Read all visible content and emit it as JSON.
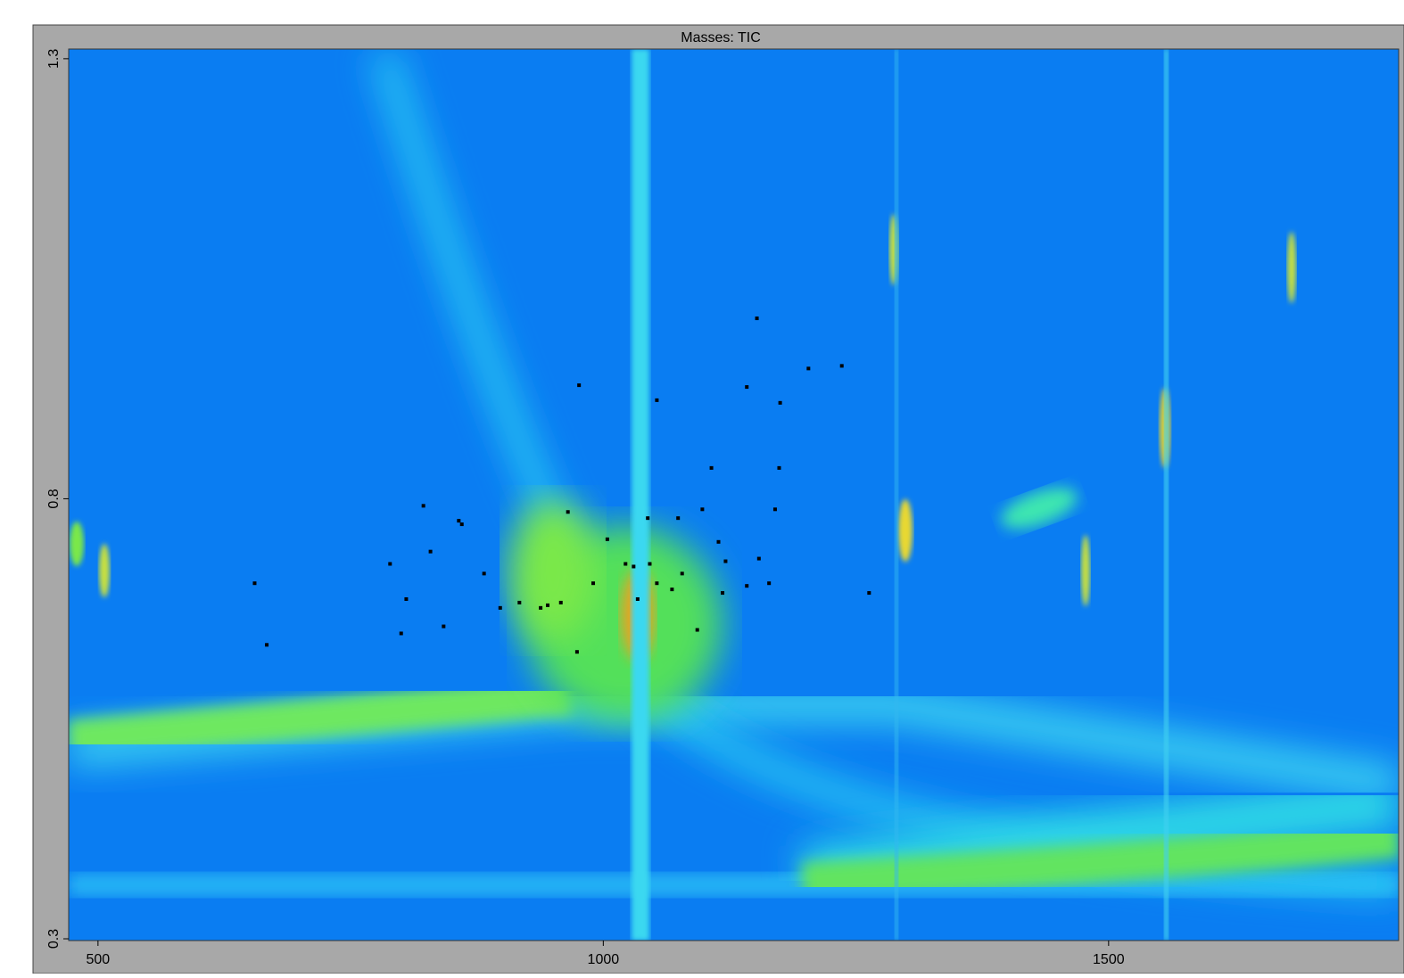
{
  "chart_data": {
    "type": "scatter",
    "title": "Masses: TIC",
    "x": [
      1152,
      1203,
      1236,
      976,
      1142,
      1053,
      1175,
      1107,
      1174,
      822,
      965,
      1044,
      1074,
      1098,
      1170,
      857,
      860,
      1004,
      1114,
      829,
      789,
      1022,
      1030,
      1046,
      1121,
      1154,
      882,
      1078,
      655,
      990,
      1053,
      1142,
      1164,
      1068,
      1118,
      1263,
      805,
      1034,
      917,
      945,
      958,
      898,
      938,
      842,
      800,
      1093,
      667,
      974
    ],
    "values": [
      1.005,
      0.948,
      0.951,
      0.929,
      0.927,
      0.912,
      0.909,
      0.835,
      0.835,
      0.792,
      0.785,
      0.778,
      0.778,
      0.788,
      0.788,
      0.775,
      0.771,
      0.754,
      0.751,
      0.74,
      0.726,
      0.726,
      0.723,
      0.726,
      0.729,
      0.732,
      0.715,
      0.715,
      0.704,
      0.704,
      0.704,
      0.701,
      0.704,
      0.697,
      0.693,
      0.693,
      0.686,
      0.686,
      0.682,
      0.679,
      0.682,
      0.676,
      0.676,
      0.655,
      0.647,
      0.651,
      0.634,
      0.626
    ],
    "color": "#000000",
    "xlim": [
      471,
      1787
    ],
    "ylim": [
      0.298,
      1.311
    ],
    "xticks": [
      500,
      1000,
      1500
    ],
    "yticks": [
      0.3,
      0.8,
      1.3
    ]
  }
}
